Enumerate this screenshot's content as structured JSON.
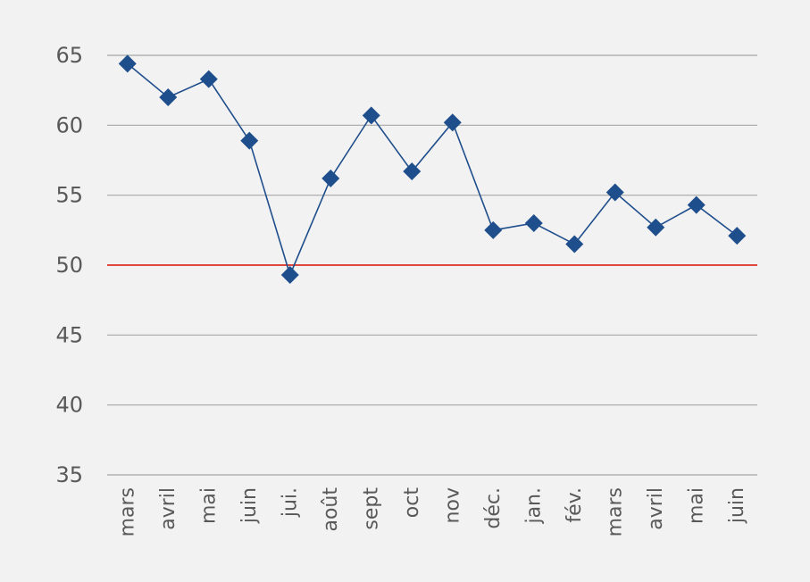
{
  "chart_data": {
    "type": "line",
    "categories": [
      "mars",
      "avril",
      "mai",
      "juin",
      "jui.",
      "août",
      "sept",
      "oct",
      "nov",
      "déc.",
      "jan.",
      "fév.",
      "mars",
      "avril",
      "mai",
      "juin"
    ],
    "series": [
      {
        "values": [
          64.4,
          62.0,
          63.3,
          58.9,
          49.3,
          56.2,
          60.7,
          56.7,
          60.2,
          52.5,
          53.0,
          51.5,
          55.2,
          52.7,
          54.3,
          52.1
        ]
      }
    ],
    "yticks": [
      "35",
      "40",
      "45",
      "50",
      "55",
      "60",
      "65"
    ],
    "ylim": [
      35,
      65
    ],
    "reference_line": 50,
    "grid": true,
    "colors": {
      "series": "#1f4e8c",
      "reference": "#e0473c",
      "grid": "#a6a6a6",
      "background": "#f2f2f2"
    }
  }
}
